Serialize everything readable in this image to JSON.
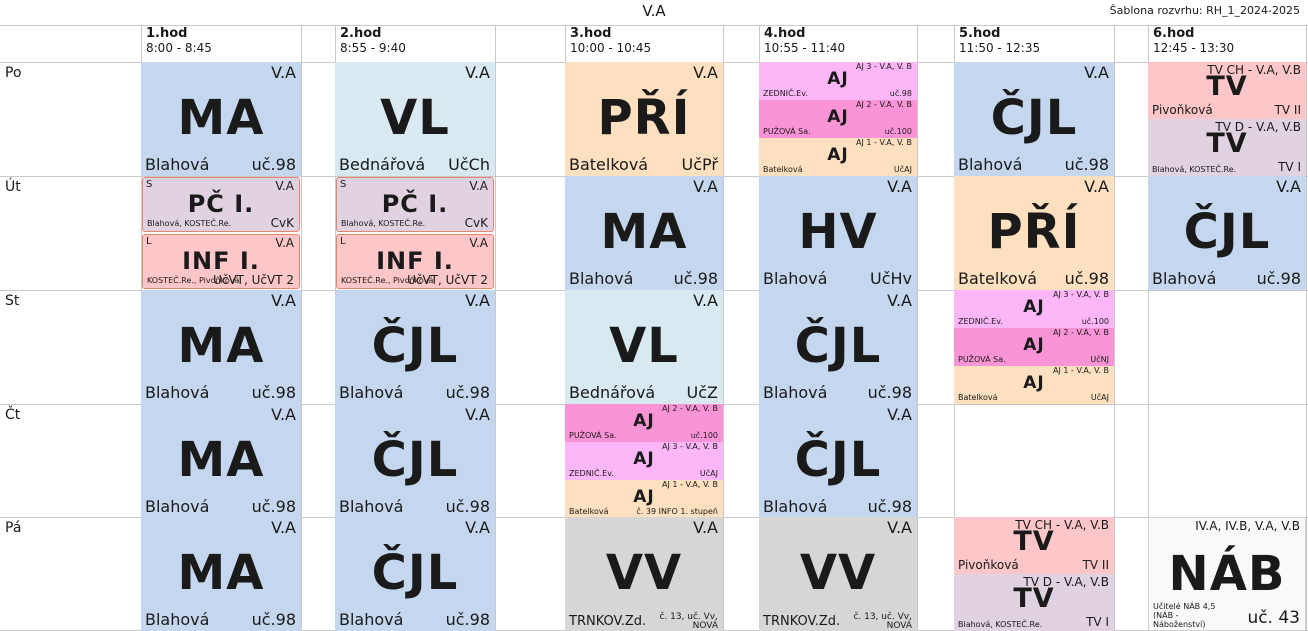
{
  "header": {
    "title": "V.A",
    "template": "Šablona rozvrhu: RH_1_2024-2025"
  },
  "periods": [
    {
      "name": "1.hod",
      "time": "8:00 - 8:45"
    },
    {
      "name": "2.hod",
      "time": "8:55 - 9:40"
    },
    {
      "name": "3.hod",
      "time": "10:00 - 10:45"
    },
    {
      "name": "4.hod",
      "time": "10:55 - 11:40"
    },
    {
      "name": "5.hod",
      "time": "11:50 - 12:35"
    },
    {
      "name": "6.hod",
      "time": "12:45 - 13:30"
    }
  ],
  "days": [
    "Po",
    "Út",
    "St",
    "Čt",
    "Pá"
  ],
  "colors": {
    "ma": "#c5d7ef",
    "vl": "#d8e9f1",
    "pri": "#fde0bf",
    "aj3": "#fdb7f8",
    "aj2": "#fb94d7",
    "aj1": "#fde0bf",
    "tvch": "#fdc6c9",
    "tvd": "#e0d2e0",
    "pc": "#e0d2e0",
    "inf": "#fdc6c9",
    "vv": "#d6d6d6",
    "nab": "#f9f9f9",
    "border_pc": "#e8866a"
  },
  "cells": {
    "po1": {
      "cls": "V.A",
      "subj": "MA",
      "teacher": "Blahová",
      "room": "uč.98"
    },
    "po2": {
      "cls": "V.A",
      "subj": "VL",
      "teacher": "Bednářová",
      "room": "UčCh"
    },
    "po3": {
      "cls": "V.A",
      "subj": "PŘÍ",
      "teacher": "Batelková",
      "room": "UčPř"
    },
    "po4a": {
      "cls": "AJ 3 - V.A, V. B",
      "subj": "AJ",
      "teacher": "ZEDNIČ.Ev.",
      "room": "uč.98"
    },
    "po4b": {
      "cls": "AJ 2 - V.A, V. B",
      "subj": "AJ",
      "teacher": "PUŽOVÁ Sa.",
      "room": "uč.100"
    },
    "po4c": {
      "cls": "AJ 1 - V.A, V. B",
      "subj": "AJ",
      "teacher": "Batelková",
      "room": "UčAJ"
    },
    "po5": {
      "cls": "V.A",
      "subj": "ČJL",
      "teacher": "Blahová",
      "room": "uč.98"
    },
    "po6a": {
      "cls": "TV CH - V.A, V.B",
      "subj": "TV",
      "teacher": "Pivoňková",
      "room": "TV II"
    },
    "po6b": {
      "cls": "TV D - V.A, V.B",
      "subj": "TV",
      "teacher": "Blahová, KOSTEČ.Re.",
      "room": "TV I"
    },
    "ut1a": {
      "grp": "S",
      "cls": "V.A",
      "subj": "PČ I.",
      "teacher": "Blahová, KOSTEČ.Re.",
      "room": "CvK"
    },
    "ut1b": {
      "grp": "L",
      "cls": "V.A",
      "subj": "INF I.",
      "teacher": "KOSTEČ.Re., Pivoňková",
      "room": "UčVT, UčVT 2"
    },
    "ut2a": {
      "grp": "S",
      "cls": "V.A",
      "subj": "PČ I.",
      "teacher": "Blahová, KOSTEČ.Re.",
      "room": "CvK"
    },
    "ut2b": {
      "grp": "L",
      "cls": "V.A",
      "subj": "INF I.",
      "teacher": "KOSTEČ.Re., Pivoňková",
      "room": "UčVT, UčVT 2"
    },
    "ut3": {
      "cls": "V.A",
      "subj": "MA",
      "teacher": "Blahová",
      "room": "uč.98"
    },
    "ut4": {
      "cls": "V.A",
      "subj": "HV",
      "teacher": "Blahová",
      "room": "UčHv"
    },
    "ut5": {
      "cls": "V.A",
      "subj": "PŘÍ",
      "teacher": "Batelková",
      "room": "uč.98"
    },
    "ut6": {
      "cls": "V.A",
      "subj": "ČJL",
      "teacher": "Blahová",
      "room": "uč.98"
    },
    "st1": {
      "cls": "V.A",
      "subj": "MA",
      "teacher": "Blahová",
      "room": "uč.98"
    },
    "st2": {
      "cls": "V.A",
      "subj": "ČJL",
      "teacher": "Blahová",
      "room": "uč.98"
    },
    "st3": {
      "cls": "V.A",
      "subj": "VL",
      "teacher": "Bednářová",
      "room": "UčZ"
    },
    "st4": {
      "cls": "V.A",
      "subj": "ČJL",
      "teacher": "Blahová",
      "room": "uč.98"
    },
    "st5a": {
      "cls": "AJ 3 - V.A, V. B",
      "subj": "AJ",
      "teacher": "ZEDNIČ.Ev.",
      "room": "uč.100"
    },
    "st5b": {
      "cls": "AJ 2 - V.A, V. B",
      "subj": "AJ",
      "teacher": "PUŽOVÁ Sa.",
      "room": "UčNJ"
    },
    "st5c": {
      "cls": "AJ 1 - V.A, V. B",
      "subj": "AJ",
      "teacher": "Batelková",
      "room": "UčAJ"
    },
    "ct1": {
      "cls": "V.A",
      "subj": "MA",
      "teacher": "Blahová",
      "room": "uč.98"
    },
    "ct2": {
      "cls": "V.A",
      "subj": "ČJL",
      "teacher": "Blahová",
      "room": "uč.98"
    },
    "ct3a": {
      "cls": "AJ 2 - V.A, V. B",
      "subj": "AJ",
      "teacher": "PUŽOVÁ Sa.",
      "room": "uč.100"
    },
    "ct3b": {
      "cls": "AJ 3 - V.A, V. B",
      "subj": "AJ",
      "teacher": "ZEDNIČ.Ev.",
      "room": "UčAJ"
    },
    "ct3c": {
      "cls": "AJ 1 - V.A, V. B",
      "subj": "AJ",
      "teacher": "Batelková",
      "room": "č. 39 INFO 1. stupeň"
    },
    "ct4": {
      "cls": "V.A",
      "subj": "ČJL",
      "teacher": "Blahová",
      "room": "uč.98"
    },
    "pa1": {
      "cls": "V.A",
      "subj": "MA",
      "teacher": "Blahová",
      "room": "uč.98"
    },
    "pa2": {
      "cls": "V.A",
      "subj": "ČJL",
      "teacher": "Blahová",
      "room": "uč.98"
    },
    "pa3": {
      "cls": "V.A",
      "subj": "VV",
      "teacher": "TRNKOV.Zd.",
      "room_a": "č. 13, uč. Vv,",
      "room_b": "NOVÁ"
    },
    "pa4": {
      "cls": "V.A",
      "subj": "VV",
      "teacher": "TRNKOV.Zd.",
      "room_a": "č. 13, uč. Vv,",
      "room_b": "NOVÁ"
    },
    "pa5a": {
      "cls": "TV CH - V.A, V.B",
      "subj": "TV",
      "teacher": "Pivoňková",
      "room": "TV II"
    },
    "pa5b": {
      "cls": "TV D - V.A, V.B",
      "subj": "TV",
      "teacher": "Blahová, KOSTEČ.Re.",
      "room": "TV I"
    },
    "pa6": {
      "cls": "IV.A, IV.B, V.A, V.B",
      "subj": "NÁB",
      "teacher": "Učitelé NÁB 4,5 (NÁB - Náboženství)",
      "room": "uč. 43"
    }
  }
}
